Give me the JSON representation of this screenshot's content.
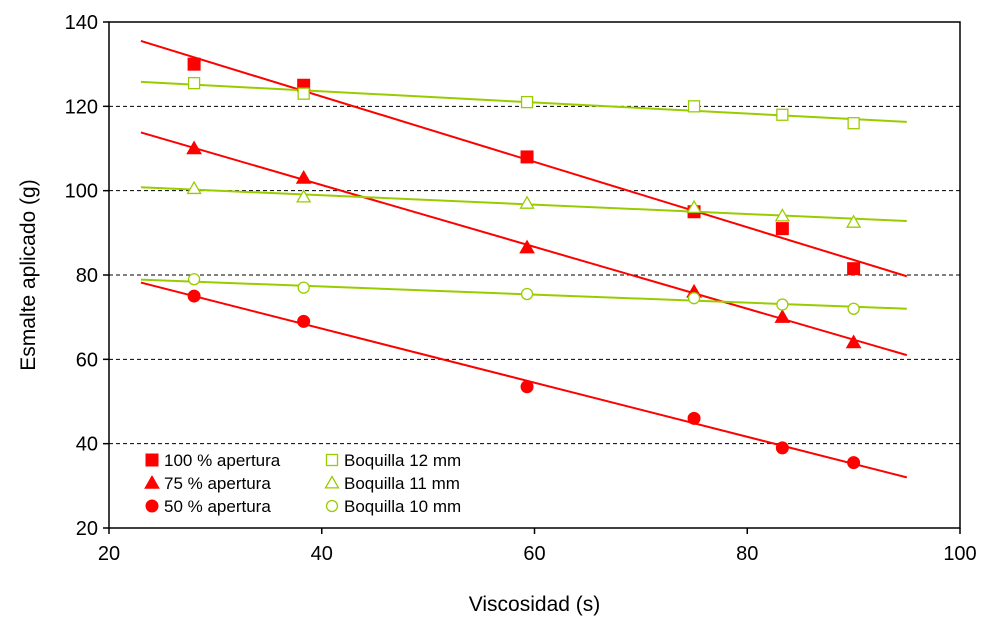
{
  "chart_data": {
    "type": "scatter",
    "title": "",
    "xlabel": "Viscosidad (s)",
    "ylabel": "Esmalte aplicado (g)",
    "xlim": [
      20,
      100
    ],
    "ylim": [
      20,
      140
    ],
    "xticks": [
      20,
      40,
      60,
      80,
      100
    ],
    "yticks": [
      20,
      40,
      60,
      80,
      100,
      120,
      140
    ],
    "grid": "horizontal dashed",
    "legend_position": "bottom-left",
    "series": [
      {
        "name": "100 % apertura",
        "marker": "square-filled",
        "color": "#ff0000",
        "points": [
          [
            28,
            130
          ],
          [
            38.3,
            125
          ],
          [
            59.3,
            108
          ],
          [
            75,
            95
          ],
          [
            83.3,
            91
          ],
          [
            90,
            81.5
          ]
        ],
        "trendline": [
          [
            23,
            135.5
          ],
          [
            95,
            79.7
          ]
        ]
      },
      {
        "name": "75 % apertura",
        "marker": "triangle-filled",
        "color": "#ff0000",
        "points": [
          [
            28,
            110
          ],
          [
            38.3,
            103
          ],
          [
            59.3,
            86.5
          ],
          [
            75,
            76
          ],
          [
            83.3,
            70
          ],
          [
            90,
            64
          ]
        ],
        "trendline": [
          [
            23,
            113.8
          ],
          [
            95,
            61
          ]
        ]
      },
      {
        "name": "50 % apertura",
        "marker": "circle-filled",
        "color": "#ff0000",
        "points": [
          [
            28,
            75
          ],
          [
            38.3,
            69
          ],
          [
            59.3,
            53.5
          ],
          [
            75,
            46
          ],
          [
            83.3,
            39
          ],
          [
            90,
            35.5
          ]
        ],
        "trendline": [
          [
            23,
            78.2
          ],
          [
            95,
            32
          ]
        ]
      },
      {
        "name": "Boquilla 12 mm",
        "marker": "square-open",
        "color": "#99cc00",
        "points": [
          [
            28,
            125.5
          ],
          [
            38.3,
            123
          ],
          [
            59.3,
            121
          ],
          [
            75,
            120
          ],
          [
            83.3,
            118
          ],
          [
            90,
            116
          ]
        ],
        "trendline": [
          [
            23,
            125.8
          ],
          [
            95,
            116.3
          ]
        ]
      },
      {
        "name": "Boquilla 11 mm",
        "marker": "triangle-open",
        "color": "#99cc00",
        "points": [
          [
            28,
            100.5
          ],
          [
            38.3,
            98.5
          ],
          [
            59.3,
            97
          ],
          [
            75,
            96
          ],
          [
            83.3,
            94
          ],
          [
            90,
            92.5
          ]
        ],
        "trendline": [
          [
            23,
            100.8
          ],
          [
            95,
            92.8
          ]
        ]
      },
      {
        "name": "Boquilla 10 mm",
        "marker": "circle-open",
        "color": "#99cc00",
        "points": [
          [
            28,
            79
          ],
          [
            38.3,
            77
          ],
          [
            59.3,
            75.5
          ],
          [
            75,
            74.5
          ],
          [
            83.3,
            73
          ],
          [
            90,
            72
          ]
        ],
        "trendline": [
          [
            23,
            78.9
          ],
          [
            95,
            72
          ]
        ]
      }
    ],
    "legend_layout": {
      "columns": [
        [
          "100 % apertura",
          "75 % apertura",
          "50 % apertura"
        ],
        [
          "Boquilla 12 mm",
          "Boquilla 11 mm",
          "Boquilla 10 mm"
        ]
      ]
    }
  }
}
